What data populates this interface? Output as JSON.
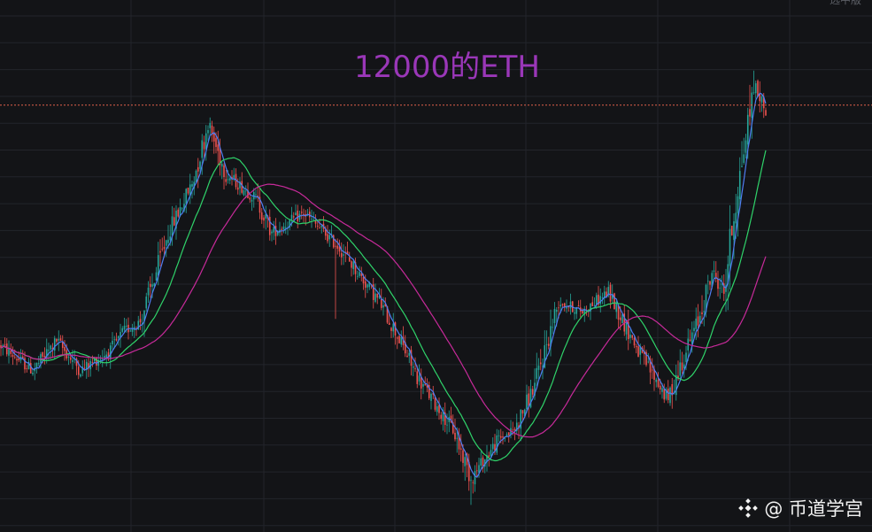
{
  "corner_label": "选中版",
  "watermark": {
    "text": "@ 币道学宫",
    "logo": "binance-logo-icon"
  },
  "colors": {
    "background": "#131417",
    "grid": "#23252b",
    "up": "#26a69a",
    "down": "#ef5350",
    "ma_short": "#4f7df2",
    "ma_mid": "#2fd36a",
    "ma_long": "#c72a9a",
    "ref_line": "#e0604a",
    "title": "#9a37b8"
  },
  "chart_data": {
    "type": "candlestick",
    "title": "12000的ETH",
    "xlabel": "",
    "ylabel": "",
    "grid": true,
    "reference_line": {
      "y": 84,
      "style": "dotted"
    },
    "trend_anchors": {
      "x": [
        0,
        16,
        28,
        40,
        55,
        62,
        70,
        78,
        84,
        96,
        104,
        113,
        128,
        136,
        152,
        170,
        190,
        198,
        210,
        220,
        227,
        236,
        250,
        258,
        268,
        280,
        292,
        305,
        320,
        335,
        342,
        350,
        357,
        363,
        368,
        378,
        384
      ],
      "y": [
        35,
        30,
        36,
        30,
        34,
        38,
        40,
        50,
        58,
        68,
        80,
        70,
        65,
        58,
        62,
        55,
        44,
        38,
        28,
        22,
        18,
        8,
        16,
        18,
        27,
        44,
        42,
        46,
        34,
        24,
        32,
        40,
        50,
        46,
        62,
        88,
        83
      ]
    },
    "series": [
      {
        "name": "",
        "period": 5,
        "color": "#4f7df2"
      },
      {
        "name": "",
        "period": 20,
        "color": "#2fd36a"
      },
      {
        "name": "",
        "period": 50,
        "color": "#c72a9a"
      }
    ]
  }
}
